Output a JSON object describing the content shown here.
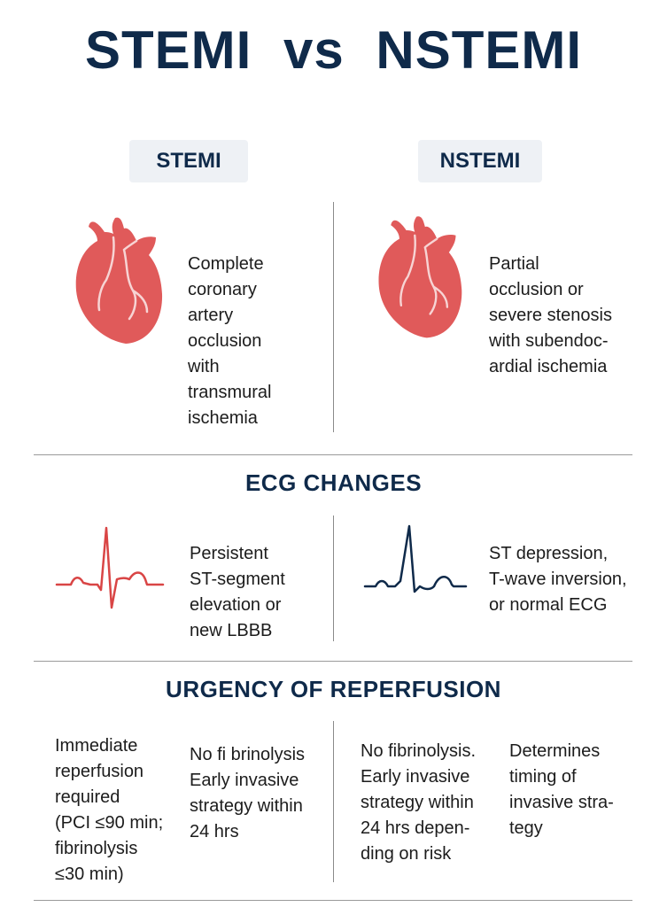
{
  "title": "STEMI  vs NSTEMI",
  "columns": {
    "left": {
      "label": "STEMI",
      "description": "Complete\ncoronary\nartery\nocclusion\nwith\ntransmural\nischemia"
    },
    "right": {
      "label": "NSTEMI",
      "description": "Partial\nocclusion or\nsevere stenosis\nwith subendoc-\nardial ischemia"
    }
  },
  "ecg": {
    "heading": "ECG CHANGES",
    "left_text": "Persistent\nST-segment\nelevation or\nnew LBBB",
    "right_text": "ST depression,\nT-wave inversion,\nor normal ECG",
    "left_color": "#d94545",
    "right_color": "#0f2a4a"
  },
  "urgency": {
    "heading": "URGENCY OF REPERFUSION",
    "col1": "Immediate\nreperfusion\nrequired\n(PCI ≤90 min;\nfibrinolysis\n≤30 min)",
    "col2": "No fi brinolysis\nEarly invasive\nstrategy within\n24 hrs",
    "col3": "No fibrinolysis.\nEarly invasive\nstrategy within\n24 hrs depen-\nding on risk",
    "col4": "Determines\ntiming of\ninvasive stra-\ntegy"
  },
  "colors": {
    "heart": "#e05a5a",
    "heart_line": "#f7d4d4",
    "navy": "#0f2a4a"
  },
  "icons": [
    "heart-icon",
    "ecg-waveform-icon"
  ]
}
